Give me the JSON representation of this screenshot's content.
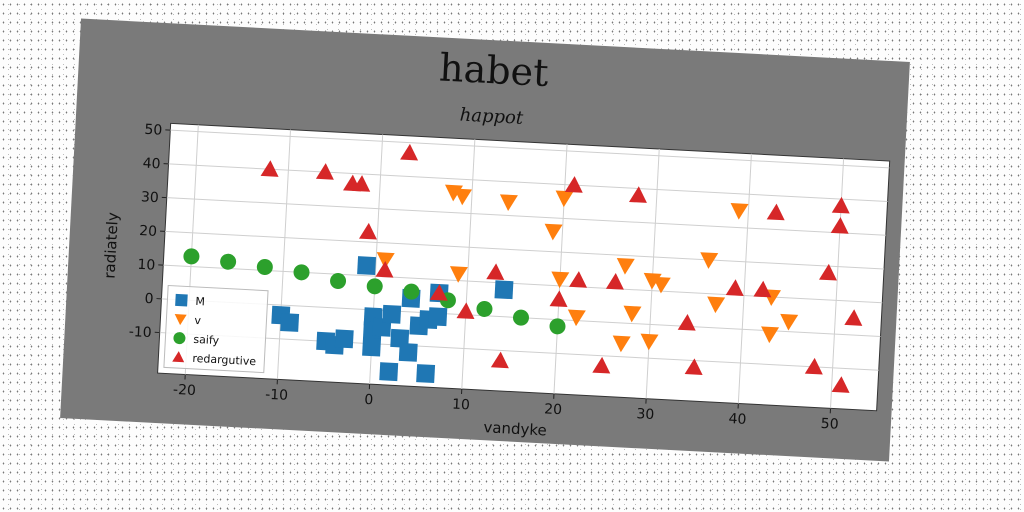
{
  "chart_data": {
    "type": "scatter",
    "title": "habet",
    "subtitle": "happot",
    "xlabel": "vandyke",
    "ylabel": "radiately",
    "xlim": [
      -23,
      55
    ],
    "ylim": [
      -22,
      52
    ],
    "xticks": [
      -20,
      -10,
      0,
      10,
      20,
      30,
      40,
      50
    ],
    "yticks": [
      -10,
      0,
      10,
      20,
      30,
      40,
      50
    ],
    "grid": true,
    "legend_position": "lower-left",
    "series": [
      {
        "name": "M",
        "marker": "square",
        "color": "#1f77b4",
        "points": [
          [
            -10,
            -3
          ],
          [
            -9,
            -5
          ],
          [
            -5,
            -10
          ],
          [
            -4,
            -11
          ],
          [
            -1,
            13
          ],
          [
            0,
            -2
          ],
          [
            0,
            -6
          ],
          [
            0,
            -11
          ],
          [
            1,
            -5
          ],
          [
            2,
            -1
          ],
          [
            2,
            -18
          ],
          [
            3,
            -8
          ],
          [
            4,
            4
          ],
          [
            4,
            -12
          ],
          [
            5,
            -4
          ],
          [
            6,
            -2
          ],
          [
            6,
            -18
          ],
          [
            7,
            6
          ],
          [
            7,
            -1
          ],
          [
            14,
            8
          ],
          [
            -3,
            -9
          ]
        ]
      },
      {
        "name": "v",
        "marker": "triangle-down",
        "color": "#ff7f0e",
        "points": [
          [
            1,
            15
          ],
          [
            8,
            36
          ],
          [
            9,
            12
          ],
          [
            9,
            35
          ],
          [
            14,
            34
          ],
          [
            19,
            26
          ],
          [
            20,
            36
          ],
          [
            20,
            12
          ],
          [
            22,
            1
          ],
          [
            27,
            17
          ],
          [
            27,
            -6
          ],
          [
            28,
            3
          ],
          [
            30,
            -5
          ],
          [
            30,
            13
          ],
          [
            31,
            12
          ],
          [
            36,
            20
          ],
          [
            37,
            7
          ],
          [
            39,
            35
          ],
          [
            43,
            10
          ],
          [
            43,
            -1
          ],
          [
            45,
            3
          ]
        ]
      },
      {
        "name": "saify",
        "marker": "circle",
        "color": "#2ca02c",
        "points": [
          [
            -20,
            13
          ],
          [
            -16,
            12
          ],
          [
            -12,
            11
          ],
          [
            -8,
            10
          ],
          [
            -4,
            8
          ],
          [
            0,
            7
          ],
          [
            4,
            6
          ],
          [
            8,
            4
          ],
          [
            12,
            2
          ],
          [
            16,
            0
          ],
          [
            20,
            -2
          ]
        ]
      },
      {
        "name": "redargutive",
        "marker": "triangle-up",
        "color": "#d62728",
        "points": [
          [
            -12,
            40
          ],
          [
            -6,
            40
          ],
          [
            -3,
            37
          ],
          [
            -2,
            37
          ],
          [
            -1,
            23
          ],
          [
            1,
            12
          ],
          [
            3,
            47
          ],
          [
            7,
            6
          ],
          [
            10,
            1
          ],
          [
            13,
            13
          ],
          [
            14,
            -13
          ],
          [
            20,
            6
          ],
          [
            21,
            40
          ],
          [
            22,
            12
          ],
          [
            25,
            -13
          ],
          [
            26,
            12
          ],
          [
            28,
            38
          ],
          [
            34,
            1
          ],
          [
            35,
            -12
          ],
          [
            39,
            12
          ],
          [
            42,
            12
          ],
          [
            43,
            35
          ],
          [
            48,
            -10
          ],
          [
            49,
            18
          ],
          [
            50,
            38
          ],
          [
            50,
            32
          ],
          [
            51,
            -15
          ],
          [
            52,
            5
          ]
        ]
      }
    ]
  }
}
